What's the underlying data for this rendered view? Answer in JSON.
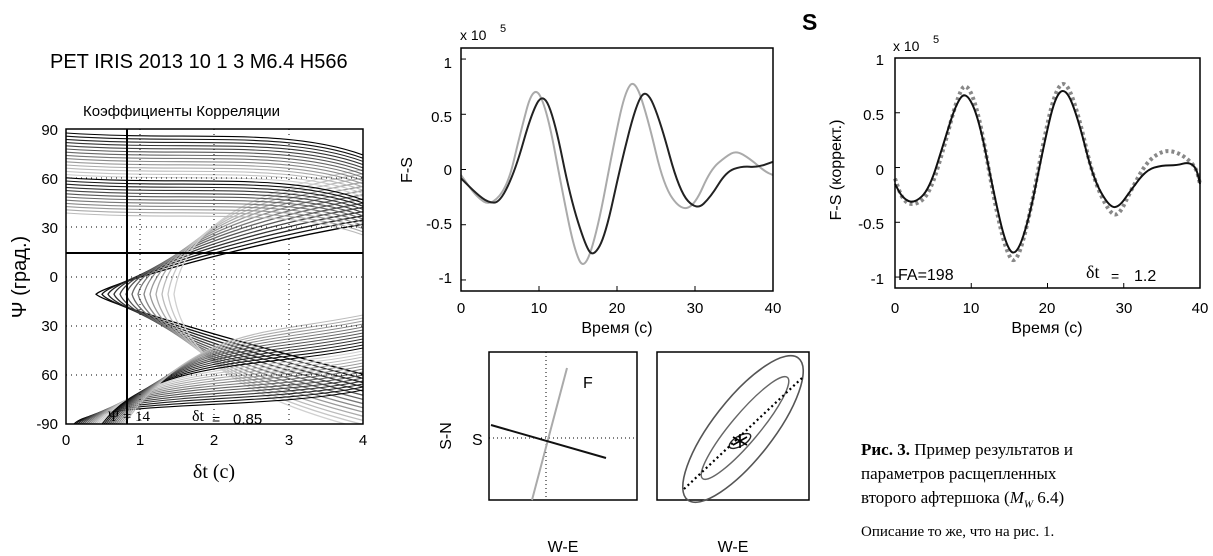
{
  "header": {
    "event_title": "PET IRIS 2013 10  1 3  M6.4 H566",
    "component_label": "S"
  },
  "chart_data": [
    {
      "type": "contour",
      "title": "Коэффициенты Корреляции",
      "xlabel": "δt (с)",
      "ylabel": "Ψ (град.)",
      "xlim": [
        0,
        4
      ],
      "ylim": [
        -90,
        90
      ],
      "xticks": [
        "0",
        "1",
        "2",
        "3",
        "4"
      ],
      "yticks": [
        "90",
        "60",
        "30",
        "0",
        "30",
        "60",
        "-90"
      ],
      "best_psi": 14,
      "best_dt": 0.85,
      "annot_psi": "Ψ = 14",
      "annot_dt_sym": "δt",
      "annot_dt_eq": "=",
      "annot_dt_val": "0.85",
      "grid": "dotted"
    },
    {
      "type": "line",
      "xlabel": "Время (с)",
      "ylabel": "F-S",
      "scale_label": "x 10",
      "scale_exp": "5",
      "xlim": [
        0,
        40
      ],
      "ylim": [
        -1.1,
        1.1
      ],
      "xticks": [
        "0",
        "10",
        "20",
        "30",
        "40"
      ],
      "yticks": [
        "1",
        "0.5",
        "0",
        "-0.5",
        "-1"
      ],
      "series": [
        {
          "color": "#aaaaaa",
          "points": [
            [
              0,
              -0.05
            ],
            [
              2,
              -0.25
            ],
            [
              3.8,
              -0.33
            ],
            [
              6,
              -0.15
            ],
            [
              7.5,
              0.3
            ],
            [
              9.3,
              0.78
            ],
            [
              11,
              0.55
            ],
            [
              13,
              -0.2
            ],
            [
              14.5,
              -0.72
            ],
            [
              15.8,
              -0.92
            ],
            [
              17.5,
              -0.55
            ],
            [
              19.5,
              0.2
            ],
            [
              21,
              0.7
            ],
            [
              22.3,
              0.82
            ],
            [
              24,
              0.45
            ],
            [
              26,
              -0.15
            ],
            [
              28.2,
              -0.37
            ],
            [
              30,
              -0.32
            ],
            [
              32,
              0
            ],
            [
              34,
              0.12
            ],
            [
              35.3,
              0.17
            ],
            [
              37,
              0.1
            ],
            [
              39,
              -0.02
            ],
            [
              40,
              -0.05
            ]
          ]
        },
        {
          "color": "#222222",
          "points": [
            [
              0,
              -0.08
            ],
            [
              2,
              -0.22
            ],
            [
              3.5,
              -0.3
            ],
            [
              5,
              -0.3
            ],
            [
              7,
              0
            ],
            [
              9,
              0.5
            ],
            [
              10.5,
              0.7
            ],
            [
              12,
              0.45
            ],
            [
              14,
              -0.25
            ],
            [
              16,
              -0.7
            ],
            [
              17,
              -0.79
            ],
            [
              18.5,
              -0.6
            ],
            [
              20.5,
              0.05
            ],
            [
              22.5,
              0.6
            ],
            [
              23.8,
              0.73
            ],
            [
              25.5,
              0.45
            ],
            [
              28,
              -0.2
            ],
            [
              30.2,
              -0.37
            ],
            [
              32,
              -0.25
            ],
            [
              34,
              -0.02
            ],
            [
              36,
              0.03
            ],
            [
              38,
              0.02
            ],
            [
              40,
              0.07
            ]
          ]
        }
      ]
    },
    {
      "type": "line",
      "xlabel": "Время (с)",
      "ylabel": "F-S (коррект.)",
      "scale_label": "x 10",
      "scale_exp": "5",
      "xlim": [
        0,
        40
      ],
      "ylim": [
        -1.1,
        1.0
      ],
      "xticks": [
        "0",
        "10",
        "20",
        "30",
        "40"
      ],
      "yticks": [
        "1",
        "0.5",
        "0",
        "-0.5",
        "-1"
      ],
      "fa_label": "FA=198",
      "dt_sym": "δt",
      "dt_eq": "=",
      "dt_val": "1.2",
      "series": [
        {
          "color": "#888888",
          "style": "dotted",
          "points": [
            [
              0,
              -0.1
            ],
            [
              1,
              -0.3
            ],
            [
              2.5,
              -0.35
            ],
            [
              4.5,
              -0.25
            ],
            [
              6.5,
              0.2
            ],
            [
              8,
              0.6
            ],
            [
              9.3,
              0.8
            ],
            [
              11,
              0.5
            ],
            [
              13,
              -0.3
            ],
            [
              14.5,
              -0.75
            ],
            [
              15.8,
              -0.9
            ],
            [
              17.5,
              -0.5
            ],
            [
              19.5,
              0.25
            ],
            [
              21,
              0.7
            ],
            [
              22.4,
              0.8
            ],
            [
              24,
              0.5
            ],
            [
              26,
              -0.1
            ],
            [
              28,
              -0.4
            ],
            [
              29.3,
              -0.45
            ],
            [
              31,
              -0.2
            ],
            [
              33,
              0.05
            ],
            [
              35,
              0.15
            ],
            [
              36.5,
              0.15
            ],
            [
              38,
              0.1
            ],
            [
              39.5,
              0
            ],
            [
              40,
              -0.15
            ]
          ]
        },
        {
          "color": "#111111",
          "style": "solid",
          "points": [
            [
              0,
              -0.15
            ],
            [
              1,
              -0.28
            ],
            [
              2.5,
              -0.33
            ],
            [
              4.5,
              -0.2
            ],
            [
              6.5,
              0.25
            ],
            [
              8,
              0.58
            ],
            [
              9.3,
              0.7
            ],
            [
              11,
              0.45
            ],
            [
              13,
              -0.25
            ],
            [
              14.5,
              -0.7
            ],
            [
              15.8,
              -0.82
            ],
            [
              17.5,
              -0.5
            ],
            [
              19.5,
              0.2
            ],
            [
              21,
              0.65
            ],
            [
              22.4,
              0.73
            ],
            [
              24,
              0.45
            ],
            [
              26,
              -0.1
            ],
            [
              28,
              -0.35
            ],
            [
              29.3,
              -0.37
            ],
            [
              31,
              -0.2
            ],
            [
              33,
              -0.02
            ],
            [
              35,
              0.02
            ],
            [
              37,
              0.02
            ],
            [
              38.5,
              0.05
            ],
            [
              39.5,
              0.0
            ],
            [
              40,
              -0.15
            ]
          ]
        }
      ]
    },
    {
      "type": "particle_motion",
      "xlabel": "W-E",
      "ylabel": "S-N",
      "label_fast": "F",
      "label_slow": "S"
    },
    {
      "type": "particle_motion",
      "xlabel": "W-E"
    }
  ],
  "caption": {
    "bold": "Рис. 3.",
    "line1": " Пример результатов и",
    "line2": "параметров  расщепленных",
    "line3a": "второго афтершока (",
    "line3m": "M",
    "line3w": "W",
    "line3b": " 6.4)",
    "desc": "Описание то же, что на рис. 1."
  }
}
